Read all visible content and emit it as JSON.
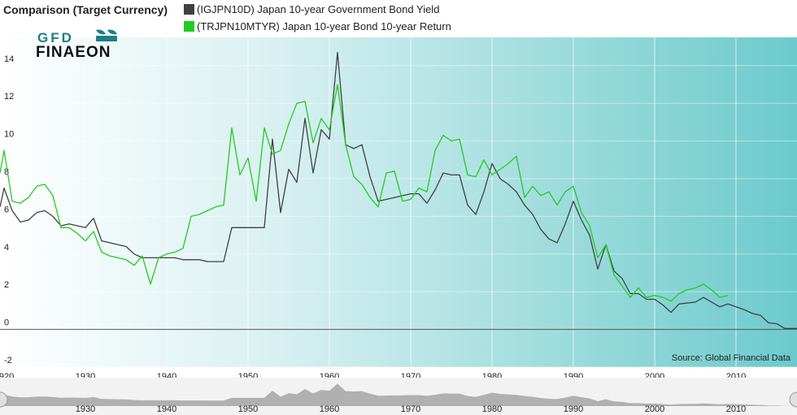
{
  "header": {
    "title": "Comparison (Target Currency)",
    "legend": [
      {
        "label": "(IGJPN10D) Japan 10-year Government Bond Yield",
        "color": "#404040"
      },
      {
        "label": "(TRJPN10MTYR) Japan 10-year Bond 10-year Return",
        "color": "#22cc22"
      }
    ]
  },
  "logo": {
    "top": "GFD",
    "bottom": "FINAEON"
  },
  "source": "Source: Global Financial Data",
  "colors": {
    "yield": "#404040",
    "return": "#22cc22",
    "gradient_start": "#ffffff",
    "gradient_end": "#6ccacc"
  },
  "chart_data": {
    "type": "line",
    "title": "Comparison (Target Currency)",
    "xlim": [
      1919.5,
      2017.5
    ],
    "ylim": [
      -2,
      15.5
    ],
    "x_ticks": [
      1920,
      1930,
      1940,
      1950,
      1960,
      1970,
      1980,
      1990,
      2000,
      2010
    ],
    "y_ticks": [
      -2,
      0,
      2,
      4,
      6,
      8,
      10,
      12,
      14
    ],
    "grid": true,
    "legend_position": "top",
    "series": [
      {
        "name": "(IGJPN10D) Japan 10-year Government Bond Yield",
        "color": "#404040",
        "points": [
          [
            1919.5,
            6.5
          ],
          [
            1920,
            7.5
          ],
          [
            1921,
            6.3
          ],
          [
            1922,
            5.7
          ],
          [
            1923,
            5.8
          ],
          [
            1924,
            6.2
          ],
          [
            1925,
            6.3
          ],
          [
            1926,
            6.0
          ],
          [
            1927,
            5.5
          ],
          [
            1928,
            5.6
          ],
          [
            1929,
            5.5
          ],
          [
            1930,
            5.4
          ],
          [
            1931,
            5.9
          ],
          [
            1932,
            4.7
          ],
          [
            1933,
            4.6
          ],
          [
            1934,
            4.5
          ],
          [
            1935,
            4.4
          ],
          [
            1936,
            4.0
          ],
          [
            1937,
            3.8
          ],
          [
            1938,
            3.8
          ],
          [
            1939,
            3.8
          ],
          [
            1940,
            3.8
          ],
          [
            1941,
            3.8
          ],
          [
            1942,
            3.7
          ],
          [
            1943,
            3.7
          ],
          [
            1944,
            3.7
          ],
          [
            1945,
            3.6
          ],
          [
            1946,
            3.6
          ],
          [
            1947,
            3.6
          ],
          [
            1948,
            5.4
          ],
          [
            1949,
            5.4
          ],
          [
            1950,
            5.4
          ],
          [
            1951,
            5.4
          ],
          [
            1952,
            5.4
          ],
          [
            1953,
            10.1
          ],
          [
            1954,
            6.2
          ],
          [
            1955,
            8.5
          ],
          [
            1956,
            7.8
          ],
          [
            1957,
            11.2
          ],
          [
            1958,
            8.3
          ],
          [
            1959,
            10.6
          ],
          [
            1960,
            10.1
          ],
          [
            1961,
            14.7
          ],
          [
            1962,
            9.8
          ],
          [
            1963,
            9.6
          ],
          [
            1964,
            9.8
          ],
          [
            1965,
            8.1
          ],
          [
            1966,
            6.8
          ],
          [
            1967,
            6.9
          ],
          [
            1968,
            7.0
          ],
          [
            1969,
            7.1
          ],
          [
            1970,
            7.2
          ],
          [
            1971,
            7.2
          ],
          [
            1972,
            6.7
          ],
          [
            1973,
            7.4
          ],
          [
            1974,
            8.3
          ],
          [
            1975,
            8.2
          ],
          [
            1976,
            8.2
          ],
          [
            1977,
            6.6
          ],
          [
            1978,
            6.1
          ],
          [
            1979,
            7.3
          ],
          [
            1980,
            8.8
          ],
          [
            1981,
            8.0
          ],
          [
            1982,
            7.7
          ],
          [
            1983,
            7.3
          ],
          [
            1984,
            6.6
          ],
          [
            1985,
            6.1
          ],
          [
            1986,
            5.3
          ],
          [
            1987,
            4.8
          ],
          [
            1988,
            4.6
          ],
          [
            1989,
            5.6
          ],
          [
            1990,
            6.8
          ],
          [
            1991,
            5.8
          ],
          [
            1992,
            5.0
          ],
          [
            1993,
            3.2
          ],
          [
            1994,
            4.5
          ],
          [
            1995,
            3.1
          ],
          [
            1996,
            2.7
          ],
          [
            1997,
            1.9
          ],
          [
            1998,
            1.9
          ],
          [
            1999,
            1.6
          ],
          [
            2000,
            1.6
          ],
          [
            2001,
            1.3
          ],
          [
            2002,
            0.9
          ],
          [
            2003,
            1.35
          ],
          [
            2004,
            1.4
          ],
          [
            2005,
            1.45
          ],
          [
            2006,
            1.7
          ],
          [
            2007,
            1.45
          ],
          [
            2008,
            1.2
          ],
          [
            2009,
            1.35
          ],
          [
            2010,
            1.2
          ],
          [
            2011,
            1.05
          ],
          [
            2012,
            0.85
          ],
          [
            2013,
            0.75
          ],
          [
            2014,
            0.35
          ],
          [
            2015,
            0.3
          ],
          [
            2016,
            0.05
          ],
          [
            2017.5,
            0.05
          ]
        ]
      },
      {
        "name": "(TRJPN10MTYR) Japan 10-year Bond 10-year Return",
        "color": "#22cc22",
        "points": [
          [
            1919.5,
            8.3
          ],
          [
            1920,
            9.5
          ],
          [
            1921,
            6.8
          ],
          [
            1922,
            6.7
          ],
          [
            1923,
            7.0
          ],
          [
            1924,
            7.6
          ],
          [
            1925,
            7.7
          ],
          [
            1926,
            7.1
          ],
          [
            1927,
            5.4
          ],
          [
            1928,
            5.4
          ],
          [
            1929,
            5.1
          ],
          [
            1930,
            4.7
          ],
          [
            1931,
            5.2
          ],
          [
            1932,
            4.1
          ],
          [
            1933,
            3.9
          ],
          [
            1934,
            3.8
          ],
          [
            1935,
            3.7
          ],
          [
            1936,
            3.4
          ],
          [
            1937,
            3.9
          ],
          [
            1938,
            2.4
          ],
          [
            1939,
            3.8
          ],
          [
            1940,
            4.0
          ],
          [
            1941,
            4.1
          ],
          [
            1942,
            4.3
          ],
          [
            1943,
            6.0
          ],
          [
            1944,
            6.1
          ],
          [
            1945,
            6.3
          ],
          [
            1946,
            6.5
          ],
          [
            1947,
            6.6
          ],
          [
            1948,
            10.7
          ],
          [
            1949,
            8.2
          ],
          [
            1950,
            9.1
          ],
          [
            1951,
            6.8
          ],
          [
            1952,
            10.7
          ],
          [
            1953,
            9.3
          ],
          [
            1954,
            9.5
          ],
          [
            1955,
            10.9
          ],
          [
            1956,
            12.0
          ],
          [
            1957,
            12.1
          ],
          [
            1958,
            9.9
          ],
          [
            1959,
            11.2
          ],
          [
            1960,
            10.6
          ],
          [
            1961,
            13.0
          ],
          [
            1962,
            9.8
          ],
          [
            1963,
            8.1
          ],
          [
            1964,
            7.7
          ],
          [
            1965,
            7.0
          ],
          [
            1966,
            6.5
          ],
          [
            1967,
            8.3
          ],
          [
            1968,
            8.4
          ],
          [
            1969,
            6.8
          ],
          [
            1970,
            6.9
          ],
          [
            1971,
            7.5
          ],
          [
            1972,
            7.3
          ],
          [
            1973,
            9.5
          ],
          [
            1974,
            10.3
          ],
          [
            1975,
            10.0
          ],
          [
            1976,
            10.1
          ],
          [
            1977,
            8.2
          ],
          [
            1978,
            8.1
          ],
          [
            1979,
            9.0
          ],
          [
            1980,
            8.2
          ],
          [
            1981,
            8.5
          ],
          [
            1982,
            8.8
          ],
          [
            1983,
            9.2
          ],
          [
            1984,
            7.0
          ],
          [
            1985,
            7.6
          ],
          [
            1986,
            7.1
          ],
          [
            1987,
            7.3
          ],
          [
            1988,
            6.6
          ],
          [
            1989,
            7.3
          ],
          [
            1990,
            7.6
          ],
          [
            1991,
            6.2
          ],
          [
            1992,
            5.5
          ],
          [
            1993,
            3.8
          ],
          [
            1994,
            4.5
          ],
          [
            1995,
            2.9
          ],
          [
            1996,
            2.3
          ],
          [
            1997,
            1.7
          ],
          [
            1998,
            2.2
          ],
          [
            1999,
            1.7
          ],
          [
            2000,
            1.8
          ],
          [
            2001,
            1.7
          ],
          [
            2002,
            1.5
          ],
          [
            2003,
            1.9
          ],
          [
            2004,
            2.1
          ],
          [
            2005,
            2.2
          ],
          [
            2006,
            2.4
          ],
          [
            2007,
            2.1
          ],
          [
            2008,
            1.7
          ],
          [
            2009,
            1.8
          ]
        ]
      }
    ]
  }
}
